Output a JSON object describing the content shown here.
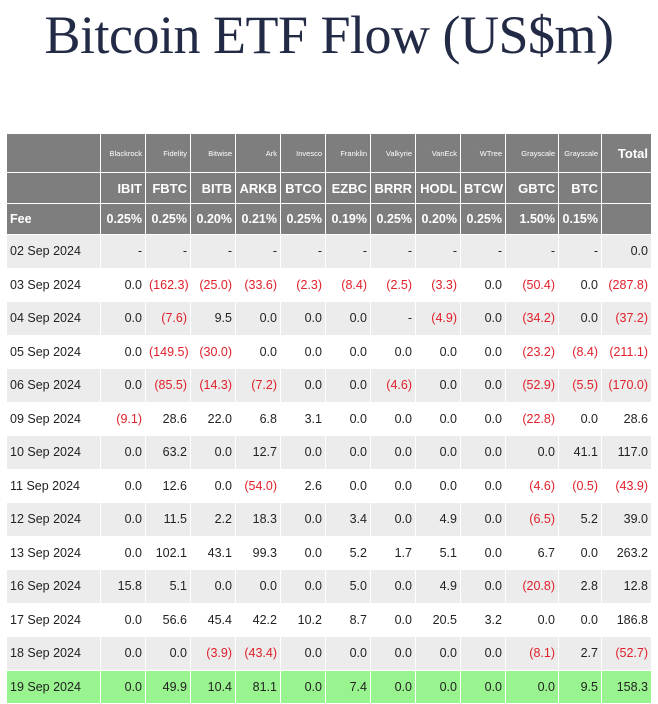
{
  "title": "Bitcoin ETF Flow (US$m)",
  "colors": {
    "header_bg": "#7e7e7e",
    "negative": "#e0202a",
    "highlight_row": "#99f38f",
    "title": "#222a45"
  },
  "issuers": [
    "Blackrock",
    "Fidelity",
    "Bitwise",
    "Ark",
    "Invesco",
    "Franklin",
    "Valkyrie",
    "VanEck",
    "WTree",
    "Grayscale",
    "Grayscale"
  ],
  "total_label": "Total",
  "tickers": [
    "IBIT",
    "FBTC",
    "BITB",
    "ARKB",
    "BTCO",
    "EZBC",
    "BRRR",
    "HODL",
    "BTCW",
    "GBTC",
    "BTC"
  ],
  "fee_label": "Fee",
  "fees": [
    "0.25%",
    "0.25%",
    "0.20%",
    "0.21%",
    "0.25%",
    "0.19%",
    "0.25%",
    "0.20%",
    "0.25%",
    "1.50%",
    "0.15%"
  ],
  "rows": [
    {
      "date": "02 Sep 2024",
      "values": [
        "-",
        "-",
        "-",
        "-",
        "-",
        "-",
        "-",
        "-",
        "-",
        "-",
        "-",
        "0.0"
      ]
    },
    {
      "date": "03 Sep 2024",
      "values": [
        "0.0",
        "(162.3)",
        "(25.0)",
        "(33.6)",
        "(2.3)",
        "(8.4)",
        "(2.5)",
        "(3.3)",
        "0.0",
        "(50.4)",
        "0.0",
        "(287.8)"
      ]
    },
    {
      "date": "04 Sep 2024",
      "values": [
        "0.0",
        "(7.6)",
        "9.5",
        "0.0",
        "0.0",
        "0.0",
        "-",
        "(4.9)",
        "0.0",
        "(34.2)",
        "0.0",
        "(37.2)"
      ]
    },
    {
      "date": "05 Sep 2024",
      "values": [
        "0.0",
        "(149.5)",
        "(30.0)",
        "0.0",
        "0.0",
        "0.0",
        "0.0",
        "0.0",
        "0.0",
        "(23.2)",
        "(8.4)",
        "(211.1)"
      ]
    },
    {
      "date": "06 Sep 2024",
      "values": [
        "0.0",
        "(85.5)",
        "(14.3)",
        "(7.2)",
        "0.0",
        "0.0",
        "(4.6)",
        "0.0",
        "0.0",
        "(52.9)",
        "(5.5)",
        "(170.0)"
      ]
    },
    {
      "date": "09 Sep 2024",
      "values": [
        "(9.1)",
        "28.6",
        "22.0",
        "6.8",
        "3.1",
        "0.0",
        "0.0",
        "0.0",
        "0.0",
        "(22.8)",
        "0.0",
        "28.6"
      ]
    },
    {
      "date": "10 Sep 2024",
      "values": [
        "0.0",
        "63.2",
        "0.0",
        "12.7",
        "0.0",
        "0.0",
        "0.0",
        "0.0",
        "0.0",
        "0.0",
        "41.1",
        "117.0"
      ]
    },
    {
      "date": "11 Sep 2024",
      "values": [
        "0.0",
        "12.6",
        "0.0",
        "(54.0)",
        "2.6",
        "0.0",
        "0.0",
        "0.0",
        "0.0",
        "(4.6)",
        "(0.5)",
        "(43.9)"
      ]
    },
    {
      "date": "12 Sep 2024",
      "values": [
        "0.0",
        "11.5",
        "2.2",
        "18.3",
        "0.0",
        "3.4",
        "0.0",
        "4.9",
        "0.0",
        "(6.5)",
        "5.2",
        "39.0"
      ]
    },
    {
      "date": "13 Sep 2024",
      "values": [
        "0.0",
        "102.1",
        "43.1",
        "99.3",
        "0.0",
        "5.2",
        "1.7",
        "5.1",
        "0.0",
        "6.7",
        "0.0",
        "263.2"
      ]
    },
    {
      "date": "16 Sep 2024",
      "values": [
        "15.8",
        "5.1",
        "0.0",
        "0.0",
        "0.0",
        "5.0",
        "0.0",
        "4.9",
        "0.0",
        "(20.8)",
        "2.8",
        "12.8"
      ]
    },
    {
      "date": "17 Sep 2024",
      "values": [
        "0.0",
        "56.6",
        "45.4",
        "42.2",
        "10.2",
        "8.7",
        "0.0",
        "20.5",
        "3.2",
        "0.0",
        "0.0",
        "186.8"
      ]
    },
    {
      "date": "18 Sep 2024",
      "values": [
        "0.0",
        "0.0",
        "(3.9)",
        "(43.4)",
        "0.0",
        "0.0",
        "0.0",
        "0.0",
        "0.0",
        "(8.1)",
        "2.7",
        "(52.7)"
      ]
    },
    {
      "date": "19 Sep 2024",
      "values": [
        "0.0",
        "49.9",
        "10.4",
        "81.1",
        "0.0",
        "7.4",
        "0.0",
        "0.0",
        "0.0",
        "0.0",
        "9.5",
        "158.3"
      ],
      "highlight": true
    }
  ]
}
